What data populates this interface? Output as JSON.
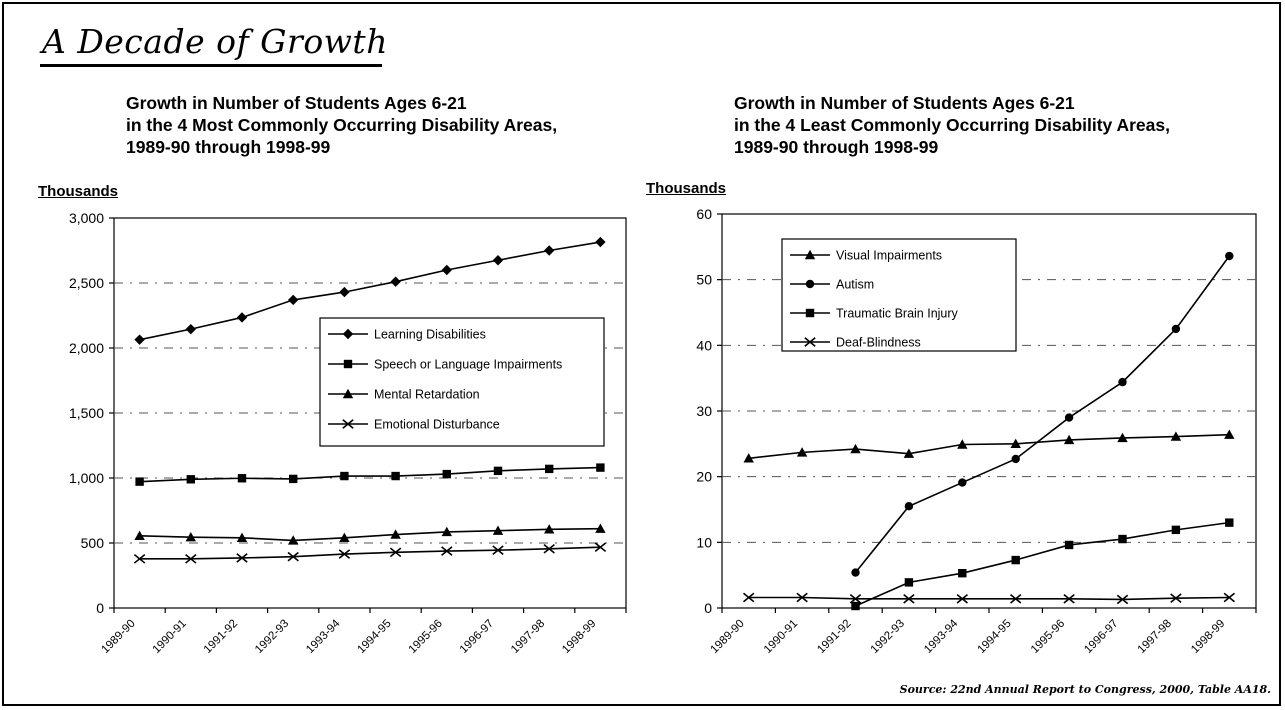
{
  "page": {
    "title": "A Decade of Growth",
    "source": "Source: 22nd Annual Report to Congress, 2000, Table AA18."
  },
  "chart_data": [
    {
      "type": "line",
      "title_lines": [
        "Growth in Number of Students Ages 6-21",
        "in the 4 Most Commonly Occurring Disability Areas,",
        "1989-90 through 1998-99"
      ],
      "units_label": "Thousands",
      "categories": [
        "1989-90",
        "1990-91",
        "1991-92",
        "1992-93",
        "1993-94",
        "1994-95",
        "1995-96",
        "1996-97",
        "1997-98",
        "1998-99"
      ],
      "ylim": [
        0,
        3000
      ],
      "yticks": [
        0,
        500,
        1000,
        1500,
        2000,
        2500,
        3000
      ],
      "ytick_labels": [
        "0",
        "500",
        "1,000",
        "1,500",
        "2,000",
        "2,500",
        "3,000"
      ],
      "grid": true,
      "legend_position": "center-right",
      "series": [
        {
          "name": "Learning Disabilities",
          "marker": "diamond",
          "values": [
            2064,
            2145,
            2235,
            2370,
            2430,
            2510,
            2600,
            2675,
            2750,
            2815
          ]
        },
        {
          "name": "Speech or Language Impairments",
          "marker": "square",
          "values": [
            972,
            990,
            998,
            993,
            1015,
            1015,
            1030,
            1055,
            1070,
            1080
          ]
        },
        {
          "name": "Mental Retardation",
          "marker": "triangle",
          "values": [
            555,
            545,
            540,
            520,
            540,
            565,
            585,
            595,
            605,
            610
          ]
        },
        {
          "name": "Emotional Disturbance",
          "marker": "x",
          "values": [
            378,
            378,
            385,
            395,
            415,
            428,
            438,
            445,
            455,
            468
          ]
        }
      ]
    },
    {
      "type": "line",
      "title_lines": [
        "Growth in Number of Students Ages 6-21",
        "in the 4 Least Commonly Occurring Disability Areas,",
        "1989-90 through 1998-99"
      ],
      "units_label": "Thousands",
      "categories": [
        "1989-90",
        "1990-91",
        "1991-92",
        "1992-93",
        "1993-94",
        "1994-95",
        "1995-96",
        "1996-97",
        "1997-98",
        "1998-99"
      ],
      "ylim": [
        0,
        60
      ],
      "yticks": [
        0,
        10,
        20,
        30,
        40,
        50,
        60
      ],
      "ytick_labels": [
        "0",
        "10",
        "20",
        "30",
        "40",
        "50",
        "60"
      ],
      "grid": true,
      "legend_position": "top-left",
      "series": [
        {
          "name": "Visual Impairments",
          "marker": "triangle",
          "values": [
            22.8,
            23.7,
            24.2,
            23.5,
            24.9,
            25.0,
            25.6,
            25.9,
            26.1,
            26.4
          ]
        },
        {
          "name": "Autism",
          "marker": "circle",
          "values": [
            null,
            null,
            5.4,
            15.5,
            19.1,
            22.7,
            29.0,
            34.4,
            42.5,
            53.6
          ]
        },
        {
          "name": "Traumatic Brain Injury",
          "marker": "square",
          "values": [
            null,
            null,
            0.3,
            3.9,
            5.3,
            7.3,
            9.6,
            10.5,
            11.9,
            13.0
          ]
        },
        {
          "name": "Deaf-Blindness",
          "marker": "x",
          "values": [
            1.6,
            1.6,
            1.4,
            1.4,
            1.4,
            1.4,
            1.4,
            1.3,
            1.5,
            1.6
          ]
        }
      ]
    }
  ]
}
